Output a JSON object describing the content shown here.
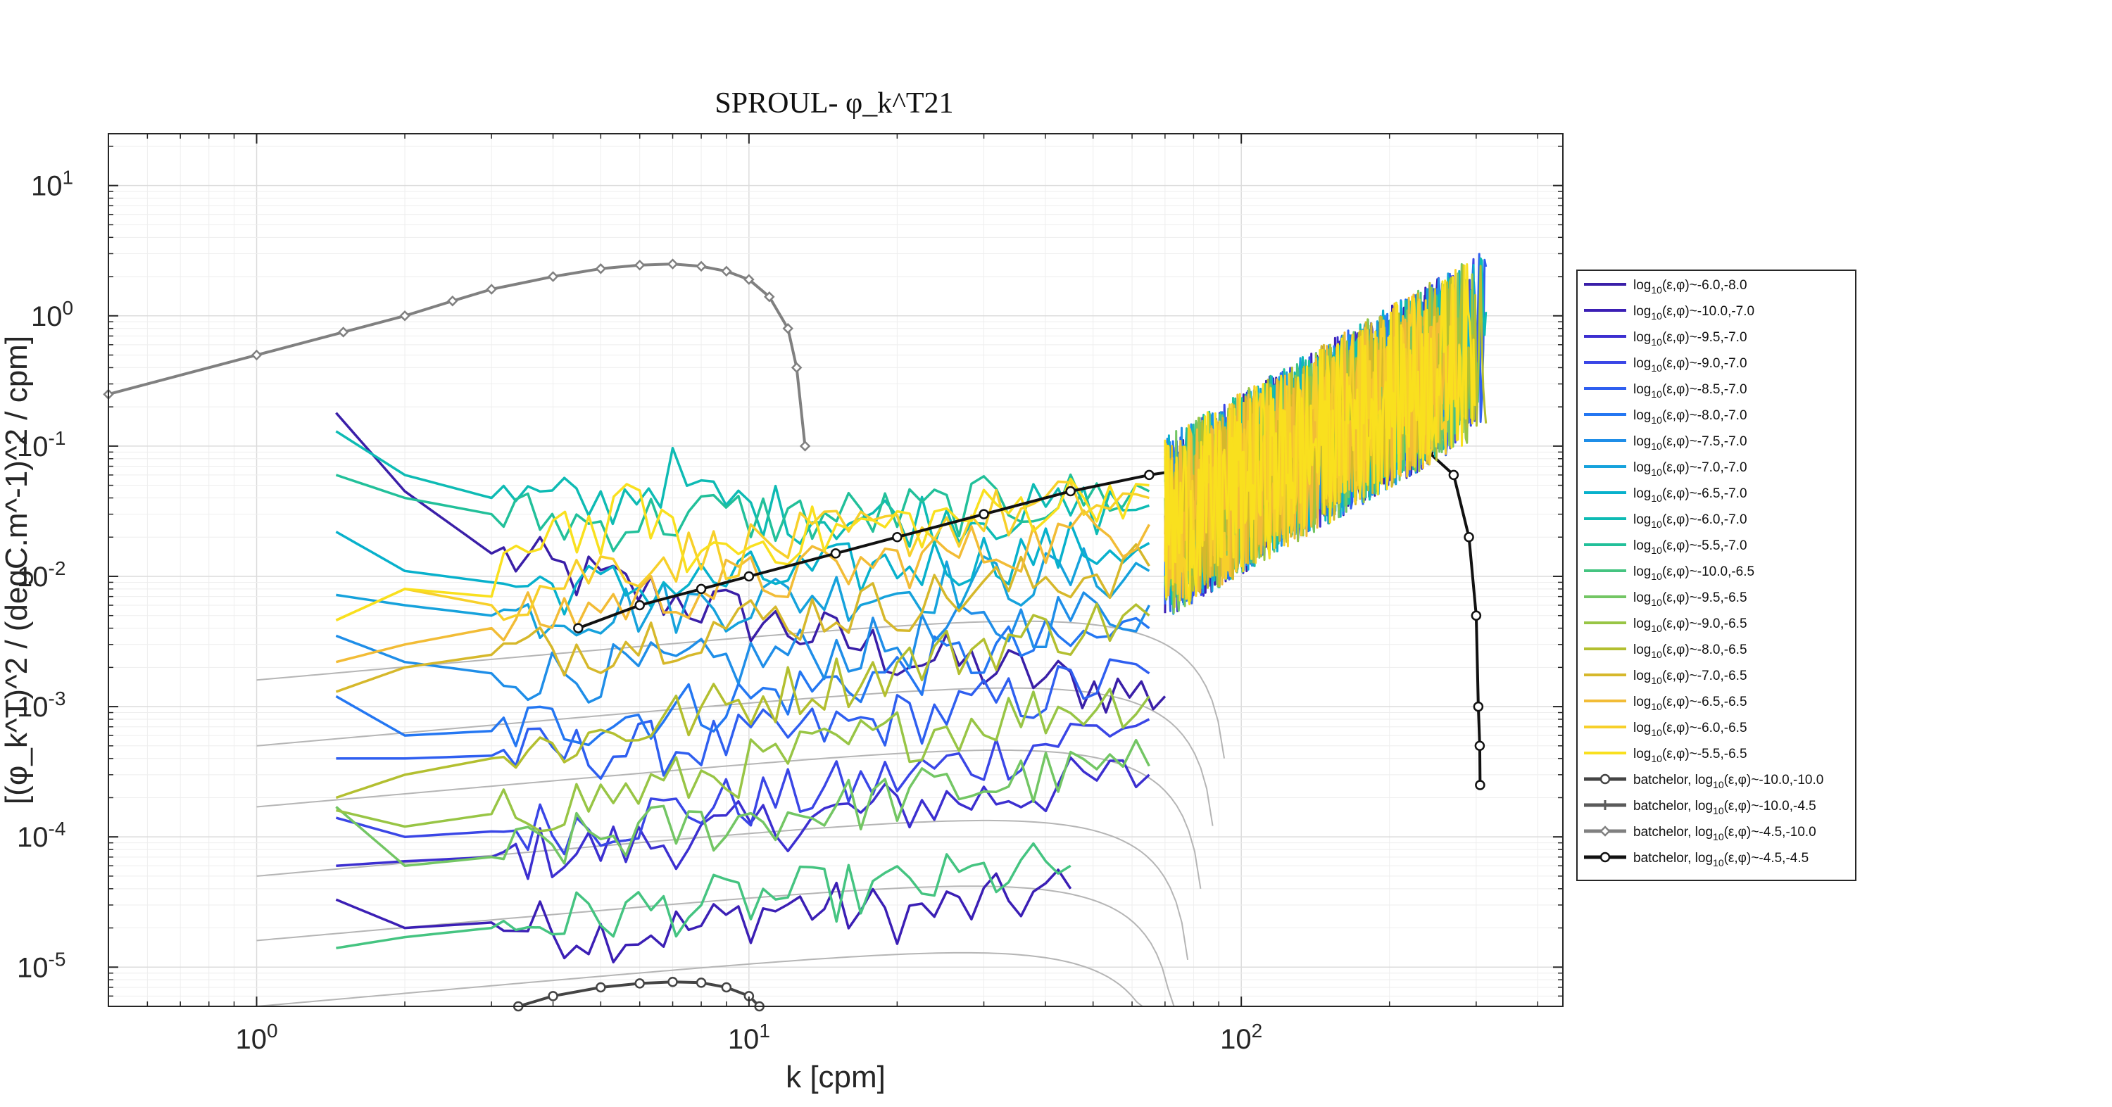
{
  "chart_data": {
    "type": "line",
    "title": "SPROUL- φ_k^T21",
    "xlabel": "k [cpm]",
    "ylabel": "[(φ_k^T)^2 / (degC.m^-1)^2 / cpm]",
    "x_scale": "log",
    "y_scale": "log",
    "xlim": [
      0.5,
      450
    ],
    "ylim": [
      5e-06,
      25
    ],
    "x_ticks": [
      1,
      10,
      100
    ],
    "x_tick_labels": [
      "10^0",
      "10^1",
      "10^2"
    ],
    "y_ticks": [
      1e-05,
      0.0001,
      0.001,
      0.01,
      0.1,
      1,
      10
    ],
    "y_tick_labels": [
      "10^-5",
      "10^-4",
      "10^-3",
      "10^-2",
      "10^-1",
      "10^0",
      "10^1"
    ],
    "grid": true,
    "legend_position": "right",
    "legend": [
      {
        "base": "log",
        "sub": "10",
        "rest": "(ε,φ)~-6.0,-8.0",
        "color": "#3a1fa8"
      },
      {
        "base": "log",
        "sub": "10",
        "rest": "(ε,φ)~-10.0,-7.0",
        "color": "#3b1fb5"
      },
      {
        "base": "log",
        "sub": "10",
        "rest": "(ε,φ)~-9.5,-7.0",
        "color": "#3c2fd0"
      },
      {
        "base": "log",
        "sub": "10",
        "rest": "(ε,φ)~-9.0,-7.0",
        "color": "#3a46e6"
      },
      {
        "base": "log",
        "sub": "10",
        "rest": "(ε,φ)~-8.5,-7.0",
        "color": "#2f5ff0"
      },
      {
        "base": "log",
        "sub": "10",
        "rest": "(ε,φ)~-8.0,-7.0",
        "color": "#2477f2"
      },
      {
        "base": "log",
        "sub": "10",
        "rest": "(ε,φ)~-7.5,-7.0",
        "color": "#1f8ee8"
      },
      {
        "base": "log",
        "sub": "10",
        "rest": "(ε,φ)~-7.0,-7.0",
        "color": "#16a2dc"
      },
      {
        "base": "log",
        "sub": "10",
        "rest": "(ε,φ)~-6.5,-7.0",
        "color": "#08b1cc"
      },
      {
        "base": "log",
        "sub": "10",
        "rest": "(ε,φ)~-6.0,-7.0",
        "color": "#0ebbb4"
      },
      {
        "base": "log",
        "sub": "10",
        "rest": "(ε,φ)~-5.5,-7.0",
        "color": "#22c09a"
      },
      {
        "base": "log",
        "sub": "10",
        "rest": "(ε,φ)~-10.0,-6.5",
        "color": "#45c481"
      },
      {
        "base": "log",
        "sub": "10",
        "rest": "(ε,φ)~-9.5,-6.5",
        "color": "#73c664"
      },
      {
        "base": "log",
        "sub": "10",
        "rest": "(ε,φ)~-9.0,-6.5",
        "color": "#98c545"
      },
      {
        "base": "log",
        "sub": "10",
        "rest": "(ε,φ)~-8.0,-6.5",
        "color": "#b3bf30"
      },
      {
        "base": "log",
        "sub": "10",
        "rest": "(ε,φ)~-7.0,-6.5",
        "color": "#d6b82b"
      },
      {
        "base": "log",
        "sub": "10",
        "rest": "(ε,φ)~-6.5,-6.5",
        "color": "#f2bc36"
      },
      {
        "base": "log",
        "sub": "10",
        "rest": "(ε,φ)~-6.0,-6.5",
        "color": "#f7d02a"
      },
      {
        "base": "log",
        "sub": "10",
        "rest": "(ε,φ)~-5.5,-6.5",
        "color": "#f9e01e"
      },
      {
        "base": "batchelor, log",
        "sub": "10",
        "rest": "(ε,φ)~-10.0,-10.0",
        "color": "#444444"
      },
      {
        "base": "batchelor, log",
        "sub": "10",
        "rest": "(ε,φ)~-10.0,-4.5",
        "color": "#5a5a5a"
      },
      {
        "base": "batchelor, log",
        "sub": "10",
        "rest": "(ε,φ)~-4.5,-10.0",
        "color": "#808080"
      },
      {
        "base": "batchelor, log",
        "sub": "10",
        "rest": "(ε,φ)~-4.5,-4.5",
        "color": "#111111"
      }
    ],
    "series": [
      {
        "name": "log10(ε,φ)~-6.0,-8.0",
        "color": "#3a1fa8",
        "x": [
          1.45,
          2.0,
          3.0,
          5.0,
          8.0,
          12.0,
          20.0,
          30.0,
          45.0,
          70.0
        ],
        "y": [
          0.18,
          0.045,
          0.015,
          0.009,
          0.006,
          0.004,
          0.0025,
          0.002,
          0.0015,
          0.0012
        ]
      },
      {
        "name": "log10(ε,φ)~-10.0,-7.0",
        "color": "#3b1fb5",
        "x": [
          1.45,
          2.0,
          3.0,
          5.0,
          8.0,
          12.0,
          20.0,
          30.0,
          45.0
        ],
        "y": [
          3.3e-05,
          2e-05,
          2.2e-05,
          1.8e-05,
          2e-05,
          3e-05,
          2.5e-05,
          3e-05,
          4e-05
        ]
      },
      {
        "name": "log10(ε,φ)~-9.5,-7.0",
        "color": "#3c2fd0",
        "x": [
          1.45,
          2.0,
          3.0,
          5.0,
          8.0,
          12.0,
          20.0,
          30.0,
          45.0,
          65.0
        ],
        "y": [
          6e-05,
          6.5e-05,
          7e-05,
          8e-05,
          0.0001,
          0.00013,
          0.00017,
          0.0002,
          0.00025,
          0.0003
        ]
      },
      {
        "name": "log10(ε,φ)~-9.0,-7.0",
        "color": "#3a46e6",
        "x": [
          1.45,
          2.0,
          3.0,
          5.0,
          8.0,
          12.0,
          20.0,
          30.0,
          45.0,
          65.0
        ],
        "y": [
          0.00014,
          0.0001,
          0.00011,
          0.00013,
          0.00017,
          0.0002,
          0.00028,
          0.0004,
          0.0006,
          0.0008
        ]
      },
      {
        "name": "log10(ε,φ)~-8.5,-7.0",
        "color": "#2f5ff0",
        "x": [
          1.45,
          2.0,
          3.0,
          5.0,
          8.0,
          12.0,
          20.0,
          30.0,
          45.0,
          65.0
        ],
        "y": [
          0.0004,
          0.0004,
          0.00042,
          0.00045,
          0.0005,
          0.0006,
          0.0008,
          0.001,
          0.0014,
          0.0018
        ]
      },
      {
        "name": "log10(ε,φ)~-8.0,-7.0",
        "color": "#2477f2",
        "x": [
          1.45,
          2.0,
          3.0,
          5.0,
          8.0,
          12.0,
          20.0,
          30.0,
          45.0,
          65.0
        ],
        "y": [
          0.0012,
          0.0006,
          0.00065,
          0.0008,
          0.001,
          0.0013,
          0.0018,
          0.0025,
          0.003,
          0.004
        ]
      },
      {
        "name": "log10(ε,φ)~-7.5,-7.0",
        "color": "#1f8ee8",
        "x": [
          1.45,
          2.0,
          3.0,
          5.0,
          8.0,
          12.0,
          20.0,
          30.0,
          45.0,
          65.0
        ],
        "y": [
          0.0035,
          0.0022,
          0.0018,
          0.0018,
          0.002,
          0.0025,
          0.003,
          0.004,
          0.005,
          0.006
        ]
      },
      {
        "name": "log10(ε,φ)~-7.0,-7.0",
        "color": "#16a2dc",
        "x": [
          1.45,
          2.0,
          3.0,
          5.0,
          8.0,
          12.0,
          20.0,
          30.0,
          45.0,
          65.0
        ],
        "y": [
          0.0072,
          0.006,
          0.005,
          0.0055,
          0.006,
          0.007,
          0.008,
          0.009,
          0.01,
          0.011
        ]
      },
      {
        "name": "log10(ε,φ)~-6.5,-7.0",
        "color": "#08b1cc",
        "x": [
          1.45,
          2.0,
          3.0,
          5.0,
          8.0,
          12.0,
          20.0,
          30.0,
          45.0,
          65.0
        ],
        "y": [
          0.022,
          0.011,
          0.009,
          0.008,
          0.009,
          0.01,
          0.012,
          0.014,
          0.016,
          0.018
        ]
      },
      {
        "name": "log10(ε,φ)~-6.0,-7.0",
        "color": "#0ebbb4",
        "x": [
          1.45,
          2.0,
          3.0,
          5.0,
          7.0,
          8.0,
          12.0,
          20.0,
          30.0,
          45.0,
          65.0
        ],
        "y": [
          0.13,
          0.06,
          0.04,
          0.035,
          0.06,
          0.04,
          0.03,
          0.028,
          0.03,
          0.032,
          0.035
        ]
      },
      {
        "name": "log10(ε,φ)~-5.5,-7.0",
        "color": "#22c09a",
        "x": [
          1.45,
          2.0,
          3.0,
          5.0,
          8.0,
          12.0,
          20.0,
          30.0,
          45.0,
          65.0
        ],
        "y": [
          0.06,
          0.04,
          0.03,
          0.025,
          0.03,
          0.028,
          0.03,
          0.035,
          0.04,
          0.045
        ]
      },
      {
        "name": "log10(ε,φ)~-10.0,-6.5",
        "color": "#45c481",
        "x": [
          1.45,
          2.0,
          3.0,
          5.0,
          8.0,
          12.0,
          20.0,
          30.0,
          45.0
        ],
        "y": [
          1.4e-05,
          1.7e-05,
          2e-05,
          2.5e-05,
          3e-05,
          3.5e-05,
          4e-05,
          5e-05,
          6e-05
        ]
      },
      {
        "name": "log10(ε,φ)~-9.5,-6.5",
        "color": "#73c664",
        "x": [
          1.45,
          2.0,
          3.0,
          5.0,
          8.0,
          12.0,
          20.0,
          30.0,
          45.0,
          65.0
        ],
        "y": [
          0.00017,
          6e-05,
          7e-05,
          0.0001,
          0.00012,
          0.00015,
          0.0002,
          0.00025,
          0.0003,
          0.00035
        ]
      },
      {
        "name": "log10(ε,φ)~-9.0,-6.5",
        "color": "#98c545",
        "x": [
          1.45,
          2.0,
          3.0,
          5.0,
          8.0,
          12.0,
          20.0,
          30.0,
          45.0,
          65.0
        ],
        "y": [
          0.00016,
          0.00012,
          0.00015,
          0.0002,
          0.00028,
          0.0004,
          0.0006,
          0.0008,
          0.001,
          0.0012
        ]
      },
      {
        "name": "log10(ε,φ)~-8.0,-6.5",
        "color": "#b3bf30",
        "x": [
          1.45,
          2.0,
          3.0,
          5.0,
          8.0,
          12.0,
          20.0,
          30.0,
          45.0,
          65.0
        ],
        "y": [
          0.0002,
          0.0003,
          0.0004,
          0.0006,
          0.0009,
          0.0013,
          0.002,
          0.003,
          0.004,
          0.005
        ]
      },
      {
        "name": "log10(ε,φ)~-7.0,-6.5",
        "color": "#d6b82b",
        "x": [
          1.45,
          2.0,
          3.0,
          5.0,
          8.0,
          12.0,
          20.0,
          30.0,
          45.0,
          65.0
        ],
        "y": [
          0.0013,
          0.002,
          0.0025,
          0.003,
          0.004,
          0.005,
          0.006,
          0.008,
          0.01,
          0.012
        ]
      },
      {
        "name": "log10(ε,φ)~-6.5,-6.5",
        "color": "#f2bc36",
        "x": [
          1.45,
          2.0,
          3.0,
          5.0,
          8.0,
          12.0,
          20.0,
          30.0,
          45.0,
          65.0
        ],
        "y": [
          0.0022,
          0.003,
          0.004,
          0.006,
          0.008,
          0.01,
          0.013,
          0.016,
          0.02,
          0.025
        ]
      },
      {
        "name": "log10(ε,φ)~-6.0,-6.5",
        "color": "#f7d02a",
        "x": [
          1.45,
          2.0,
          3.0,
          5.0,
          8.0,
          12.0,
          20.0,
          30.0,
          45.0,
          65.0
        ],
        "y": [
          0.0046,
          0.008,
          0.006,
          0.012,
          0.015,
          0.018,
          0.022,
          0.028,
          0.035,
          0.04
        ]
      },
      {
        "name": "log10(ε,φ)~-5.5,-6.5",
        "color": "#f9e01e",
        "x": [
          1.45,
          2.0,
          3.0,
          4.0,
          5.0,
          6.0,
          7.0,
          8.0,
          12.0,
          20.0,
          30.0,
          45.0,
          65.0
        ],
        "y": [
          0.0046,
          0.008,
          0.007,
          0.03,
          0.02,
          0.04,
          0.018,
          0.015,
          0.02,
          0.025,
          0.03,
          0.04,
          0.05
        ]
      },
      {
        "name": "batchelor, log10(ε,φ)~-10.0,-10.0",
        "color": "#444444",
        "marker": "o",
        "x": [
          3.4,
          4.0,
          5.0,
          6.0,
          7.0,
          8.0,
          9.0,
          10.0,
          10.5
        ],
        "y": [
          5e-06,
          6e-06,
          7e-06,
          7.5e-06,
          7.7e-06,
          7.6e-06,
          7e-06,
          6e-06,
          5e-06
        ]
      },
      {
        "name": "batchelor, log10(ε,φ)~-10.0,-4.5",
        "color": "#5a5a5a",
        "marker": "+",
        "x": [],
        "y": []
      },
      {
        "name": "batchelor, log10(ε,φ)~-4.5,-10.0",
        "color": "#808080",
        "marker": "d",
        "x": [
          0.5,
          1.0,
          1.5,
          2.0,
          2.5,
          3.0,
          4.0,
          5.0,
          6.0,
          7.0,
          8.0,
          9.0,
          10.0,
          11.0,
          12.0,
          12.5,
          13.0
        ],
        "y": [
          0.25,
          0.5,
          0.75,
          1.0,
          1.3,
          1.6,
          2.0,
          2.3,
          2.45,
          2.5,
          2.4,
          2.2,
          1.9,
          1.4,
          0.8,
          0.4,
          0.1
        ]
      },
      {
        "name": "batchelor, log10(ε,φ)~-4.5,-4.5",
        "color": "#111111",
        "marker": "o",
        "x": [
          4.5,
          6.0,
          8.0,
          10.0,
          15.0,
          20.0,
          30.0,
          45.0,
          65.0,
          90.0,
          130.0,
          180.0,
          240.0,
          270.0,
          290.0,
          300.0,
          303.0,
          305.0,
          305.5
        ],
        "y": [
          0.004,
          0.006,
          0.008,
          0.01,
          0.015,
          0.02,
          0.03,
          0.045,
          0.06,
          0.072,
          0.085,
          0.095,
          0.09,
          0.06,
          0.02,
          0.005,
          0.001,
          0.0005,
          0.00025
        ]
      }
    ]
  }
}
